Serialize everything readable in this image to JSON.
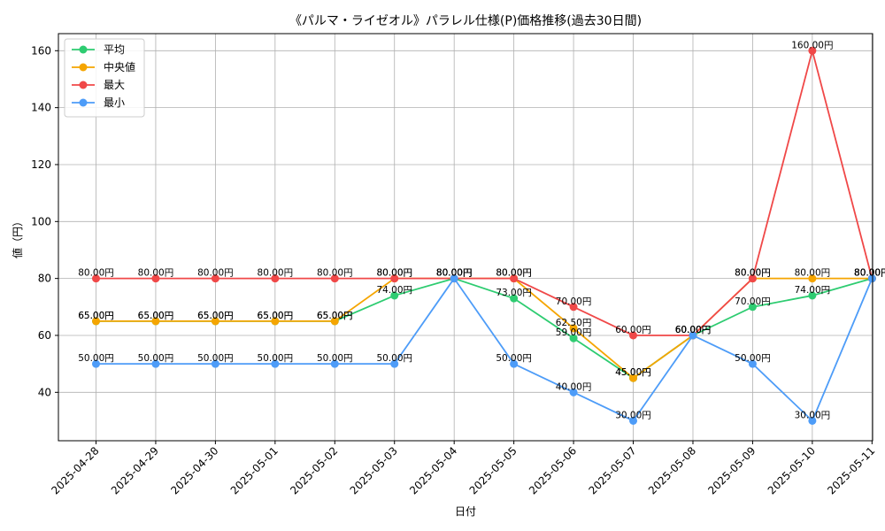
{
  "chart_data": {
    "type": "line",
    "title": "《パルマ・ライゼオル》パラレル仕様(P)価格推移(過去30日間)",
    "xlabel": "日付",
    "ylabel": "値（円）",
    "ylim": [
      23,
      166
    ],
    "yticks": [
      40,
      60,
      80,
      100,
      120,
      140,
      160
    ],
    "grid": true,
    "legend_position": "top-left",
    "label_suffix": "円",
    "categories": [
      "2025-04-28",
      "2025-04-29",
      "2025-04-30",
      "2025-05-01",
      "2025-05-02",
      "2025-05-03",
      "2025-05-04",
      "2025-05-05",
      "2025-05-06",
      "2025-05-07",
      "2025-05-08",
      "2025-05-09",
      "2025-05-10",
      "2025-05-11"
    ],
    "series": [
      {
        "name": "平均",
        "color": "#2ecc71",
        "values": [
          65,
          65,
          65,
          65,
          65,
          74,
          80,
          73,
          59,
          45,
          60,
          70,
          74,
          80
        ]
      },
      {
        "name": "中央値",
        "color": "#f5a500",
        "values": [
          65,
          65,
          65,
          65,
          65,
          80,
          80,
          80,
          62.5,
          45,
          60,
          80,
          80,
          80
        ]
      },
      {
        "name": "最大",
        "color": "#f04848",
        "values": [
          80,
          80,
          80,
          80,
          80,
          80,
          80,
          80,
          70,
          60,
          60,
          80,
          160,
          80
        ]
      },
      {
        "name": "最小",
        "color": "#4d9cf8",
        "values": [
          50,
          50,
          50,
          50,
          50,
          50,
          80,
          50,
          40,
          30,
          60,
          50,
          30,
          80
        ]
      }
    ]
  }
}
